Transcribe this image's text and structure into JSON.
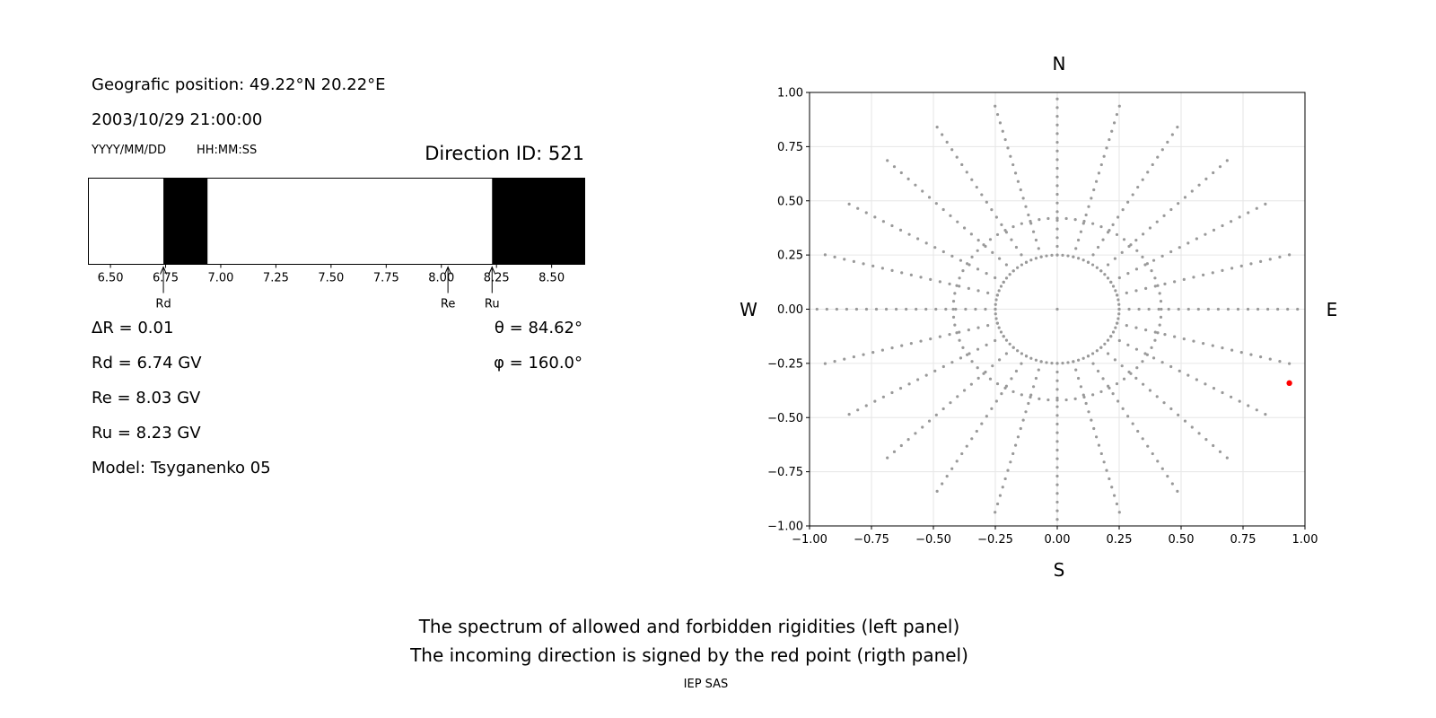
{
  "info": {
    "position": "Geografic position: 49.22°N 20.22°E",
    "datetime": "2003/10/29 21:00:00",
    "date_fmt": "YYYY/MM/DD",
    "time_fmt": "HH:MM:SS",
    "direction_id": "Direction ID: 521",
    "delta_r": "ΔR = 0.01",
    "theta": "θ = 84.62°",
    "phi": "φ = 160.0°",
    "rd": "Rd = 6.74 GV",
    "re": "Re = 8.03 GV",
    "ru": "Ru = 8.23 GV",
    "model": "Model: Tsyganenko 05"
  },
  "footer": {
    "line1": "The spectrum of allowed and forbidden rigidities (left panel)",
    "line2": "The incoming direction is signed by the red point (rigth panel)",
    "credit": "IEP SAS"
  },
  "chart_data": [
    {
      "type": "bar",
      "title": "",
      "xlim": [
        6.4,
        8.65
      ],
      "ticks": [
        6.5,
        6.75,
        7.0,
        7.25,
        7.5,
        7.75,
        8.0,
        8.25,
        8.5
      ],
      "tick_labels": [
        "6.50",
        "6.75",
        "7.00",
        "7.25",
        "7.50",
        "7.75",
        "8.00",
        "8.25",
        "8.50"
      ],
      "forbidden_bands": [
        [
          6.74,
          6.94
        ],
        [
          8.23,
          8.65
        ]
      ],
      "markers": [
        {
          "label": "Rd",
          "x": 6.74
        },
        {
          "label": "Re",
          "x": 8.03
        },
        {
          "label": "Ru",
          "x": 8.23
        }
      ],
      "colors": {
        "forbidden": "#000000",
        "allowed": "#ffffff"
      }
    },
    {
      "type": "scatter",
      "xlim": [
        -1,
        1
      ],
      "ylim": [
        -1,
        1
      ],
      "ticks": [
        -1.0,
        -0.75,
        -0.5,
        -0.25,
        0.0,
        0.25,
        0.5,
        0.75,
        1.0
      ],
      "tick_labels": [
        "−1.00",
        "−0.75",
        "−0.50",
        "−0.25",
        "0.00",
        "0.25",
        "0.50",
        "0.75",
        "1.00"
      ],
      "grid": true,
      "compass": {
        "N": "N",
        "S": "S",
        "E": "E",
        "W": "W"
      },
      "grid_points": {
        "radii": [
          0.25,
          0.42
        ],
        "spoke_step_deg": 15,
        "color": "#999999"
      },
      "highlight": {
        "x": 0.937,
        "y": -0.341,
        "color": "#ff0000"
      }
    }
  ]
}
